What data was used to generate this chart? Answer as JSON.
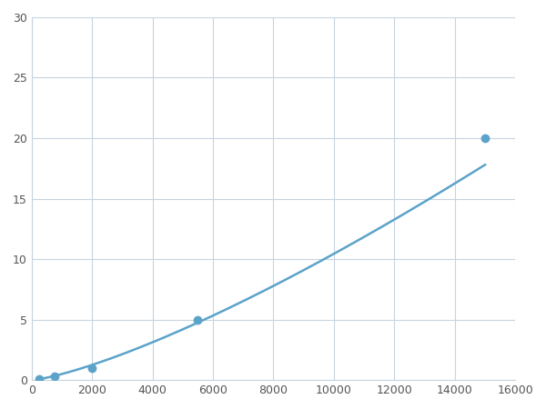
{
  "x_points": [
    250,
    750,
    2000,
    5500,
    15000
  ],
  "y_points": [
    0.1,
    0.3,
    1.0,
    5.0,
    20.0
  ],
  "line_color": "#5ba3c9",
  "marker_color": "#5ba3c9",
  "marker_size": 6,
  "linewidth": 1.8,
  "xlim": [
    0,
    16000
  ],
  "ylim": [
    0,
    30
  ],
  "xticks": [
    0,
    2000,
    4000,
    6000,
    8000,
    10000,
    12000,
    14000,
    16000
  ],
  "yticks": [
    0,
    5,
    10,
    15,
    20,
    25,
    30
  ],
  "grid_color": "#c8d4e0",
  "background_color": "#ffffff",
  "figsize": [
    6.0,
    4.5
  ],
  "dpi": 100
}
